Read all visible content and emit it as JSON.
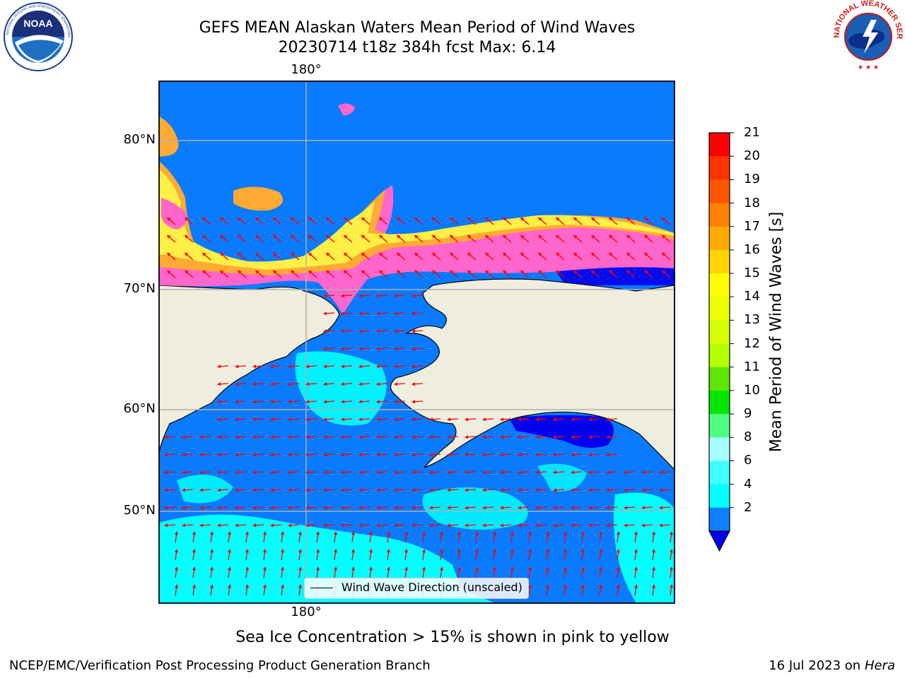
{
  "title": {
    "line1": "GEFS MEAN Alaskan Waters Mean Period of Wind Waves",
    "line2": "20230714 t18z 384h fcst   Max: 6.14"
  },
  "map": {
    "lon_label_top": "180°",
    "lon_label_bottom": "180°",
    "lat_labels": [
      "80°N",
      "70°N",
      "60°N",
      "50°N"
    ],
    "legend_text": "Wind Wave Direction (unscaled)",
    "colors": {
      "land": "#efedde",
      "ocean_2_4": "#0a7aff",
      "ocean_4_6": "#00ffff",
      "ocean_below_2": "#0000ee",
      "arrow": "#ff0000",
      "grid": "#b0b0b0",
      "ice_pink": "#ff66cc",
      "ice_orange": "#ffaa33",
      "ice_yellow": "#ffee44"
    }
  },
  "colorbar": {
    "label": "Mean Period of Wind Waves [s]",
    "ticks": [
      "21",
      "20",
      "19",
      "18",
      "17",
      "16",
      "15",
      "14",
      "13",
      "12",
      "11",
      "10",
      "9",
      "8",
      "6",
      "4",
      "2"
    ],
    "bands": [
      "#fe0000",
      "#fe3300",
      "#fe5500",
      "#fe8000",
      "#ffaa00",
      "#ffd400",
      "#ffff00",
      "#ecff00",
      "#d4ff00",
      "#b4ff00",
      "#5ee600",
      "#00e800",
      "#50ff80",
      "#a4ffff",
      "#40ffff",
      "#00ffff",
      "#0f7fff"
    ],
    "extend_color": "#0000ee"
  },
  "caption": "Sea Ice Concentration > 15% is shown in pink to yellow",
  "footer": {
    "left": "NCEP/EMC/Verification Post Processing Product Generation Branch",
    "right_date": "16 Jul 2023 on ",
    "right_host": "Hera"
  },
  "logos": {
    "noaa_text": "NOAA",
    "noaa_ring": "NATIONAL OCEANIC AND ATMOSPHERIC ADMINISTRATION · U.S. DEPARTMENT OF COMMERCE",
    "nws_ring": "NATIONAL WEATHER SERVICE"
  }
}
